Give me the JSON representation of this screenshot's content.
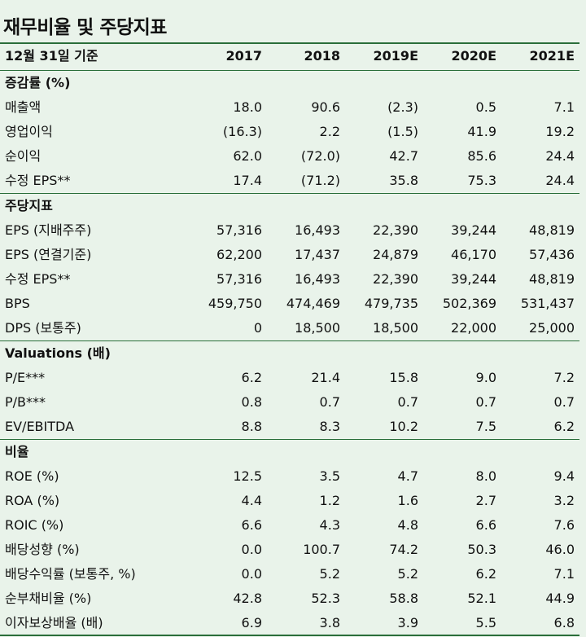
{
  "title": "재무비율 및 주당지표",
  "header": {
    "label": "12월 31일 기준",
    "years": [
      "2017",
      "2018",
      "2019E",
      "2020E",
      "2021E"
    ]
  },
  "sections": [
    {
      "name": "증감률 (%)",
      "rows": [
        {
          "label": "매출액",
          "values": [
            "18.0",
            "90.6",
            "(2.3)",
            "0.5",
            "7.1"
          ]
        },
        {
          "label": "영업이익",
          "values": [
            "(16.3)",
            "2.2",
            "(1.5)",
            "41.9",
            "19.2"
          ]
        },
        {
          "label": "순이익",
          "values": [
            "62.0",
            "(72.0)",
            "42.7",
            "85.6",
            "24.4"
          ]
        },
        {
          "label": "수정 EPS**",
          "values": [
            "17.4",
            "(71.2)",
            "35.8",
            "75.3",
            "24.4"
          ]
        }
      ]
    },
    {
      "name": "주당지표",
      "rows": [
        {
          "label": "EPS (지배주주)",
          "values": [
            "57,316",
            "16,493",
            "22,390",
            "39,244",
            "48,819"
          ]
        },
        {
          "label": "EPS (연결기준)",
          "values": [
            "62,200",
            "17,437",
            "24,879",
            "46,170",
            "57,436"
          ]
        },
        {
          "label": "수정 EPS**",
          "values": [
            "57,316",
            "16,493",
            "22,390",
            "39,244",
            "48,819"
          ]
        },
        {
          "label": "BPS",
          "values": [
            "459,750",
            "474,469",
            "479,735",
            "502,369",
            "531,437"
          ]
        },
        {
          "label": "DPS (보통주)",
          "values": [
            "0",
            "18,500",
            "18,500",
            "22,000",
            "25,000"
          ]
        }
      ]
    },
    {
      "name": "Valuations (배)",
      "rows": [
        {
          "label": "P/E***",
          "values": [
            "6.2",
            "21.4",
            "15.8",
            "9.0",
            "7.2"
          ]
        },
        {
          "label": "P/B***",
          "values": [
            "0.8",
            "0.7",
            "0.7",
            "0.7",
            "0.7"
          ]
        },
        {
          "label": "EV/EBITDA",
          "values": [
            "8.8",
            "8.3",
            "10.2",
            "7.5",
            "6.2"
          ]
        }
      ]
    },
    {
      "name": "비율",
      "rows": [
        {
          "label": "ROE (%)",
          "values": [
            "12.5",
            "3.5",
            "4.7",
            "8.0",
            "9.4"
          ]
        },
        {
          "label": "ROA (%)",
          "values": [
            "4.4",
            "1.2",
            "1.6",
            "2.7",
            "3.2"
          ]
        },
        {
          "label": "ROIC (%)",
          "values": [
            "6.6",
            "4.3",
            "4.8",
            "6.6",
            "7.6"
          ]
        },
        {
          "label": "배당성향 (%)",
          "values": [
            "0.0",
            "100.7",
            "74.2",
            "50.3",
            "46.0"
          ]
        },
        {
          "label": "배당수익률 (보통주, %)",
          "values": [
            "0.0",
            "5.2",
            "5.2",
            "6.2",
            "7.1"
          ]
        },
        {
          "label": "순부채비율 (%)",
          "values": [
            "42.8",
            "52.3",
            "58.8",
            "52.1",
            "44.9"
          ]
        },
        {
          "label": "이자보상배율 (배)",
          "values": [
            "6.9",
            "3.8",
            "3.9",
            "5.5",
            "6.8"
          ]
        }
      ]
    }
  ]
}
